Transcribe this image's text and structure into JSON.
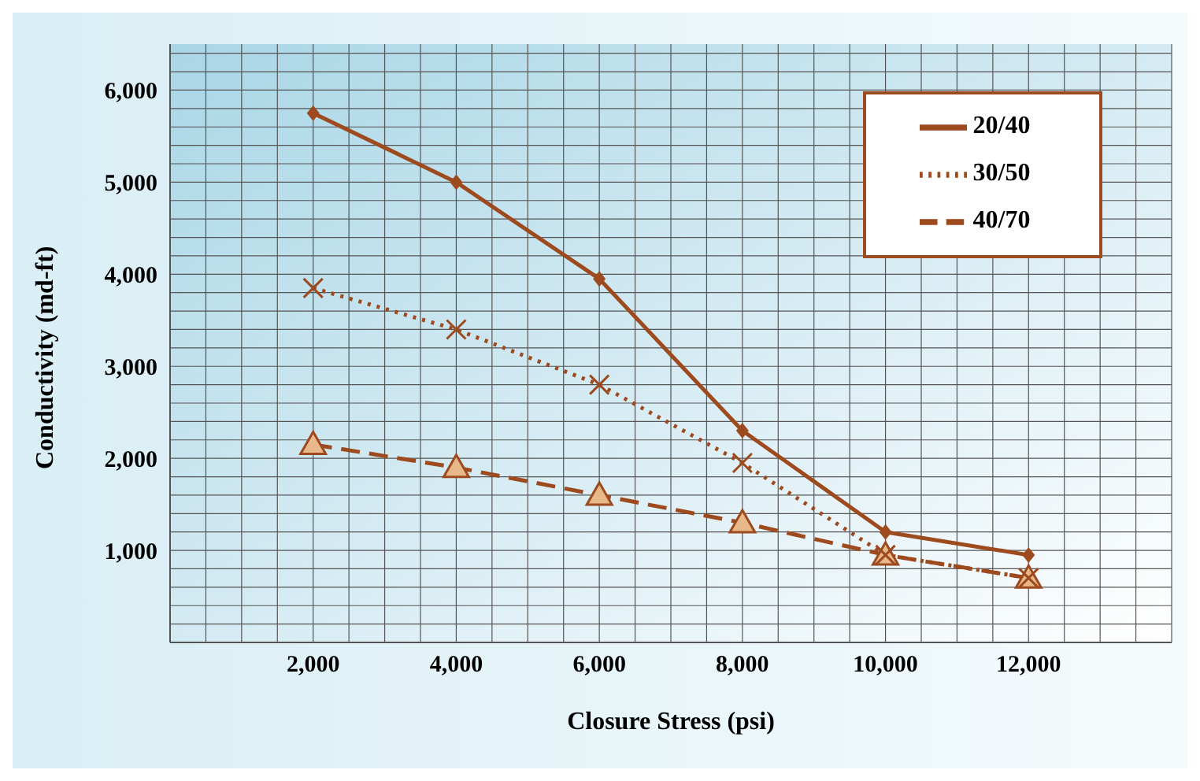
{
  "chart_data": {
    "type": "line",
    "xlabel": "Closure Stress (psi)",
    "ylabel": "Conductivity (md-ft)",
    "x": [
      2000,
      4000,
      6000,
      8000,
      10000,
      12000
    ],
    "series": [
      {
        "name": "20/40",
        "color": "#9c4a1e",
        "values": [
          5750,
          5000,
          3950,
          2300,
          1200,
          950
        ],
        "marker": "diamond",
        "line_style": "solid"
      },
      {
        "name": "30/50",
        "color": "#9c4a1e",
        "values": [
          3850,
          3400,
          2800,
          1950,
          950,
          700
        ],
        "marker": "cross",
        "line_style": "dotted"
      },
      {
        "name": "40/70",
        "color": "#9c4a1e",
        "values": [
          2150,
          1900,
          1600,
          1300,
          950,
          700
        ],
        "marker": "triangle",
        "line_style": "dashed"
      }
    ],
    "xlim": [
      0,
      14000
    ],
    "xticks": [
      {
        "value": 0,
        "label": null
      },
      {
        "value": 500,
        "label": null
      },
      {
        "value": 1000,
        "label": null
      },
      {
        "value": 1500,
        "label": null
      },
      {
        "value": 2000,
        "label": "2,000"
      },
      {
        "value": 2500,
        "label": null
      },
      {
        "value": 3000,
        "label": null
      },
      {
        "value": 3500,
        "label": null
      },
      {
        "value": 4000,
        "label": "4,000"
      },
      {
        "value": 4500,
        "label": null
      },
      {
        "value": 5000,
        "label": null
      },
      {
        "value": 5500,
        "label": null
      },
      {
        "value": 6000,
        "label": "6,000"
      },
      {
        "value": 6500,
        "label": null
      },
      {
        "value": 7000,
        "label": null
      },
      {
        "value": 7500,
        "label": null
      },
      {
        "value": 8000,
        "label": "8,000"
      },
      {
        "value": 8500,
        "label": null
      },
      {
        "value": 9000,
        "label": null
      },
      {
        "value": 9500,
        "label": null
      },
      {
        "value": 10000,
        "label": "10,000"
      },
      {
        "value": 10500,
        "label": null
      },
      {
        "value": 11000,
        "label": null
      },
      {
        "value": 11500,
        "label": null
      },
      {
        "value": 12000,
        "label": "12,000"
      },
      {
        "value": 12500,
        "label": null
      },
      {
        "value": 13000,
        "label": null
      },
      {
        "value": 13500,
        "label": null
      },
      {
        "value": 14000,
        "label": null
      }
    ],
    "ylim": [
      0,
      6500
    ],
    "yticks": [
      {
        "value": 0,
        "label": null
      },
      {
        "value": 200,
        "label": null
      },
      {
        "value": 400,
        "label": null
      },
      {
        "value": 600,
        "label": null
      },
      {
        "value": 800,
        "label": null
      },
      {
        "value": 1000,
        "label": "1,000"
      },
      {
        "value": 1200,
        "label": null
      },
      {
        "value": 1400,
        "label": null
      },
      {
        "value": 1600,
        "label": null
      },
      {
        "value": 1800,
        "label": null
      },
      {
        "value": 2000,
        "label": "2,000"
      },
      {
        "value": 2200,
        "label": null
      },
      {
        "value": 2400,
        "label": null
      },
      {
        "value": 2600,
        "label": null
      },
      {
        "value": 2800,
        "label": null
      },
      {
        "value": 3000,
        "label": "3,000"
      },
      {
        "value": 3200,
        "label": null
      },
      {
        "value": 3400,
        "label": null
      },
      {
        "value": 3600,
        "label": null
      },
      {
        "value": 3800,
        "label": null
      },
      {
        "value": 4000,
        "label": "4,000"
      },
      {
        "value": 4200,
        "label": null
      },
      {
        "value": 4400,
        "label": null
      },
      {
        "value": 4600,
        "label": null
      },
      {
        "value": 4800,
        "label": null
      },
      {
        "value": 5000,
        "label": "5,000"
      },
      {
        "value": 5200,
        "label": null
      },
      {
        "value": 5400,
        "label": null
      },
      {
        "value": 5600,
        "label": null
      },
      {
        "value": 5800,
        "label": null
      },
      {
        "value": 6000,
        "label": "6,000"
      },
      {
        "value": 6200,
        "label": null
      },
      {
        "value": 6400,
        "label": null
      }
    ],
    "grid": true,
    "legend": "top right"
  }
}
